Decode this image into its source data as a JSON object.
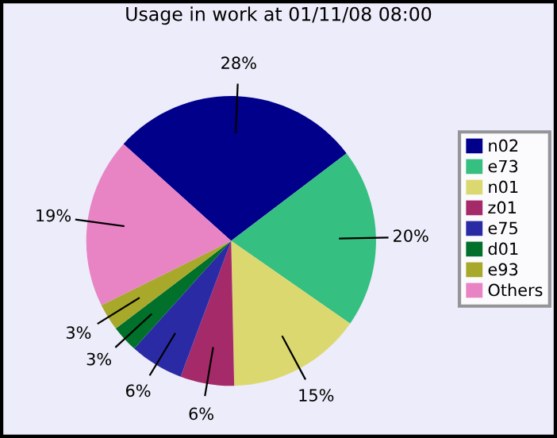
{
  "chart_data": {
    "type": "pie",
    "title": "Usage in work at 01/11/08 08:00",
    "categories": [
      "n02",
      "e73",
      "n01",
      "z01",
      "e75",
      "d01",
      "e93",
      "Others"
    ],
    "values": [
      28,
      20,
      15,
      6,
      6,
      3,
      3,
      19
    ],
    "value_labels": [
      "28%",
      "20%",
      "15%",
      "6%",
      "6%",
      "3%",
      "3%",
      "19%"
    ],
    "colors": [
      "#00008b",
      "#35bf80",
      "#dcd870",
      "#a52a6a",
      "#2a2aa5",
      "#00702a",
      "#a8a82a",
      "#e883c4"
    ],
    "legend": "right"
  }
}
